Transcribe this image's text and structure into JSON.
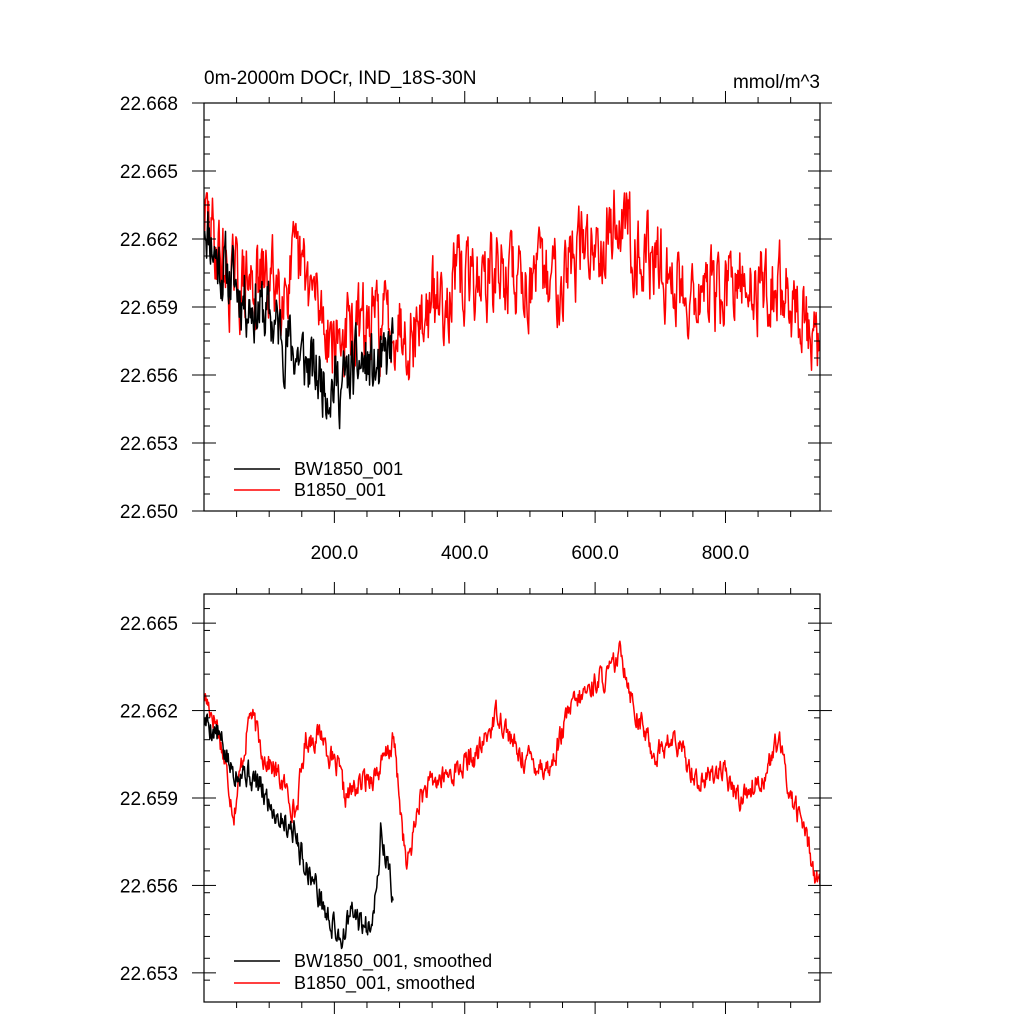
{
  "colors": {
    "series_a": "#000000",
    "series_b": "#ff0000",
    "frame": "#000000"
  },
  "chart_data": [
    {
      "type": "line",
      "title": "0m-2000m DOCr, IND_18S-30N",
      "units": "mmol/m^3",
      "ylim": [
        22.65,
        22.668
      ],
      "xlim": [
        0,
        945
      ],
      "yticks": [
        22.65,
        22.653,
        22.656,
        22.659,
        22.662,
        22.665,
        22.668
      ],
      "ytick_labels": [
        "22.650",
        "22.653",
        "22.656",
        "22.659",
        "22.662",
        "22.665",
        "22.668"
      ],
      "xticks": [
        200,
        400,
        600,
        800
      ],
      "xtick_labels": [
        "200.0",
        "400.0",
        "600.0",
        "800.0"
      ],
      "legend_position": "bottom-left",
      "series": [
        {
          "name": "BW1850_001",
          "color": "#000000",
          "n": 290,
          "seed": 11,
          "anchors": [
            [
              0,
              22.663
            ],
            [
              20,
              22.661
            ],
            [
              60,
              22.6595
            ],
            [
              100,
              22.6585
            ],
            [
              140,
              22.657
            ],
            [
              170,
              22.656
            ],
            [
              210,
              22.6555
            ],
            [
              240,
              22.6565
            ],
            [
              270,
              22.656
            ],
            [
              290,
              22.6575
            ]
          ],
          "noise": 0.0025
        },
        {
          "name": "B1850_001",
          "color": "#ff0000",
          "n": 945,
          "seed": 29,
          "anchors": [
            [
              0,
              22.663
            ],
            [
              40,
              22.66
            ],
            [
              80,
              22.66
            ],
            [
              150,
              22.6605
            ],
            [
              200,
              22.6575
            ],
            [
              240,
              22.658
            ],
            [
              290,
              22.6585
            ],
            [
              320,
              22.658
            ],
            [
              380,
              22.66
            ],
            [
              460,
              22.6605
            ],
            [
              520,
              22.66
            ],
            [
              560,
              22.661
            ],
            [
              600,
              22.662
            ],
            [
              640,
              22.663
            ],
            [
              670,
              22.6615
            ],
            [
              720,
              22.66
            ],
            [
              780,
              22.6595
            ],
            [
              860,
              22.66
            ],
            [
              900,
              22.6595
            ],
            [
              945,
              22.6565
            ]
          ],
          "noise": 0.003
        }
      ]
    },
    {
      "type": "line",
      "ylim": [
        22.652,
        22.666
      ],
      "xlim": [
        0,
        945
      ],
      "yticks": [
        22.653,
        22.656,
        22.659,
        22.662,
        22.665
      ],
      "ytick_labels": [
        "22.653",
        "22.656",
        "22.659",
        "22.662",
        "22.665"
      ],
      "xticks": [
        200,
        400,
        600,
        800
      ],
      "legend_position": "bottom-left",
      "series": [
        {
          "name": "BW1850_001, smoothed",
          "color": "#000000",
          "n": 290,
          "seed": 5,
          "anchors": [
            [
              0,
              22.6617
            ],
            [
              20,
              22.6612
            ],
            [
              40,
              22.66
            ],
            [
              60,
              22.66
            ],
            [
              80,
              22.6595
            ],
            [
              110,
              22.6585
            ],
            [
              135,
              22.658
            ],
            [
              150,
              22.657
            ],
            [
              170,
              22.656
            ],
            [
              190,
              22.6548
            ],
            [
              200,
              22.6545
            ],
            [
              210,
              22.6542
            ],
            [
              225,
              22.655
            ],
            [
              250,
              22.6545
            ],
            [
              265,
              22.656
            ],
            [
              270,
              22.6578
            ],
            [
              280,
              22.6568
            ],
            [
              290,
              22.6555
            ]
          ],
          "noise": 0.0008
        },
        {
          "name": "B1850_001, smoothed",
          "color": "#ff0000",
          "n": 945,
          "seed": 17,
          "anchors": [
            [
              0,
              22.6625
            ],
            [
              20,
              22.6615
            ],
            [
              45,
              22.6585
            ],
            [
              70,
              22.662
            ],
            [
              90,
              22.6605
            ],
            [
              120,
              22.6595
            ],
            [
              140,
              22.6585
            ],
            [
              155,
              22.661
            ],
            [
              180,
              22.6612
            ],
            [
              200,
              22.66
            ],
            [
              205,
              22.66
            ],
            [
              215,
              22.659
            ],
            [
              240,
              22.6595
            ],
            [
              270,
              22.66
            ],
            [
              290,
              22.661
            ],
            [
              310,
              22.6565
            ],
            [
              330,
              22.659
            ],
            [
              350,
              22.6595
            ],
            [
              390,
              22.66
            ],
            [
              420,
              22.6605
            ],
            [
              450,
              22.662
            ],
            [
              480,
              22.6605
            ],
            [
              530,
              22.66
            ],
            [
              560,
              22.662
            ],
            [
              600,
              22.663
            ],
            [
              620,
              22.6632
            ],
            [
              640,
              22.664
            ],
            [
              660,
              22.662
            ],
            [
              690,
              22.6605
            ],
            [
              720,
              22.661
            ],
            [
              760,
              22.6595
            ],
            [
              790,
              22.66
            ],
            [
              820,
              22.659
            ],
            [
              860,
              22.6598
            ],
            [
              880,
              22.661
            ],
            [
              900,
              22.659
            ],
            [
              920,
              22.658
            ],
            [
              935,
              22.6565
            ],
            [
              945,
              22.656
            ]
          ],
          "noise": 0.0007
        }
      ]
    }
  ]
}
